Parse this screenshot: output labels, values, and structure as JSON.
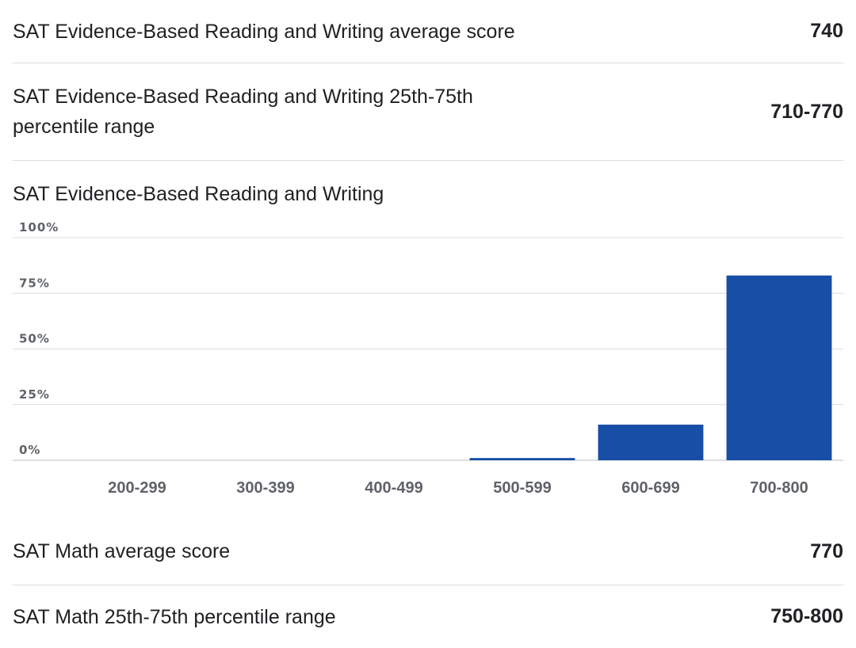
{
  "rows": [
    {
      "label": "SAT Evidence-Based Reading and Writing average score",
      "value": "740"
    },
    {
      "label": "SAT Evidence-Based Reading and Writing 25th-75th percentile range",
      "value": "710-770"
    },
    {
      "label": "SAT Math average score",
      "value": "770"
    },
    {
      "label": "SAT Math 25th-75th percentile range",
      "value": "750-800"
    }
  ],
  "chart_data": {
    "type": "bar",
    "title": "SAT Evidence-Based Reading and Writing",
    "xlabel": "",
    "ylabel": "",
    "categories": [
      "200-299",
      "300-399",
      "400-499",
      "500-599",
      "600-699",
      "700-800"
    ],
    "values": [
      0,
      0,
      0,
      1,
      16,
      83
    ],
    "ylim": [
      0,
      100
    ],
    "yticks": [
      "0%",
      "25%",
      "50%",
      "75%",
      "100%"
    ],
    "ytick_values": [
      0,
      25,
      50,
      75,
      100
    ],
    "grid": true,
    "bar_color": "#174ea6",
    "grid_color": "#dadce0",
    "axis_color": "#bdc1c6"
  }
}
